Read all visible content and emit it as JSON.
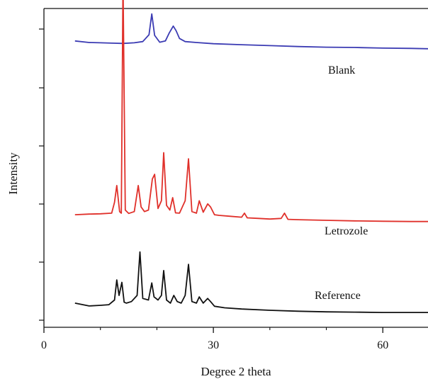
{
  "chart_data": {
    "type": "line",
    "title": "",
    "xlabel": "Degree 2 theta",
    "ylabel": "Intensity",
    "xlim": [
      0,
      68
    ],
    "ylim": [
      0,
      100
    ],
    "x_ticks": [
      0,
      30,
      60
    ],
    "x_tick_labels": [
      "0",
      "30",
      "60"
    ],
    "y_tick_labels": [],
    "grid": false,
    "legend": "none",
    "series": [
      {
        "name": "Blank",
        "color": "#3b3bb3",
        "x": [
          5.5,
          8,
          10,
          12,
          14,
          16,
          17.5,
          18.6,
          19.1,
          19.6,
          20.5,
          21.5,
          22.2,
          22.9,
          23.4,
          24.0,
          25,
          27,
          30,
          35,
          40,
          45,
          50,
          55,
          60,
          65,
          68
        ],
        "y": [
          90.0,
          89.5,
          89.4,
          89.3,
          89.2,
          89.4,
          89.8,
          92.0,
          98.7,
          91.8,
          89.6,
          90.0,
          92.6,
          94.8,
          93.3,
          90.8,
          89.8,
          89.5,
          89.1,
          88.8,
          88.5,
          88.2,
          88.0,
          87.9,
          87.7,
          87.6,
          87.5
        ]
      },
      {
        "name": "Letrozole",
        "color": "#e0302a",
        "x": [
          5.5,
          8,
          10,
          12,
          12.5,
          12.9,
          13.4,
          13.7,
          14.0,
          14.4,
          15,
          16,
          16.7,
          17.2,
          17.8,
          18.5,
          19.2,
          19.6,
          20.2,
          20.8,
          21.2,
          21.7,
          22.3,
          22.8,
          23.3,
          24,
          25,
          25.6,
          26.2,
          27,
          27.5,
          28.2,
          29,
          29.5,
          30.2,
          31,
          33,
          35,
          35.5,
          36,
          38,
          40,
          42,
          42.6,
          43.2,
          45,
          50,
          55,
          60,
          65,
          68
        ],
        "y": [
          34.0,
          34.2,
          34.3,
          34.5,
          38.0,
          43.4,
          35.0,
          34.5,
          110.0,
          35.5,
          34.4,
          35.0,
          43.4,
          36.5,
          35.0,
          35.5,
          45.5,
          47.0,
          36.0,
          38.5,
          54.0,
          37.0,
          35.5,
          39.5,
          34.6,
          34.5,
          38.5,
          52.0,
          35.0,
          34.5,
          38.5,
          34.8,
          37.5,
          36.5,
          34.0,
          33.8,
          33.5,
          33.2,
          34.5,
          33.0,
          32.8,
          32.6,
          32.8,
          34.5,
          32.5,
          32.4,
          32.2,
          32.0,
          31.9,
          31.8,
          31.8
        ]
      },
      {
        "name": "Reference",
        "color": "#111111",
        "x": [
          5.5,
          8,
          10,
          11.5,
          12.5,
          12.9,
          13.3,
          13.8,
          14.2,
          14.6,
          15.5,
          16.5,
          17.0,
          17.5,
          18.5,
          19.1,
          19.5,
          20.2,
          20.8,
          21.2,
          21.7,
          22.4,
          23.0,
          23.6,
          24.3,
          25.0,
          25.6,
          26.2,
          27.0,
          27.5,
          28.2,
          29.0,
          29.5,
          30.2,
          32,
          35,
          40,
          45,
          50,
          55,
          60,
          65,
          68
        ],
        "y": [
          5.5,
          4.6,
          4.8,
          5.0,
          6.5,
          13.0,
          8.0,
          12.2,
          5.8,
          5.5,
          6.0,
          8.0,
          22.0,
          7.0,
          6.5,
          12.0,
          7.5,
          6.5,
          8.0,
          16.0,
          6.5,
          5.5,
          8.0,
          6.0,
          5.5,
          8.0,
          18.0,
          6.0,
          5.5,
          7.5,
          5.5,
          7.0,
          6.0,
          4.5,
          4.0,
          3.6,
          3.2,
          2.9,
          2.7,
          2.6,
          2.5,
          2.5,
          2.5
        ]
      }
    ],
    "annotations": [
      {
        "text": "Blank",
        "series": "Blank"
      },
      {
        "text": "Letrozole",
        "series": "Letrozole"
      },
      {
        "text": "Reference",
        "series": "Reference"
      }
    ]
  }
}
